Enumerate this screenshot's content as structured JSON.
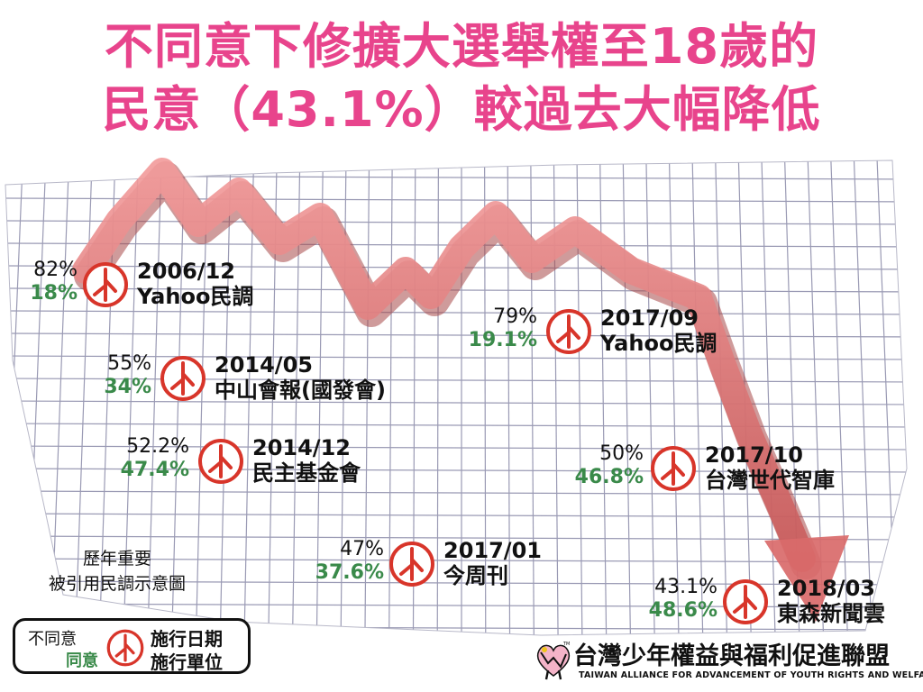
{
  "title": {
    "line1": "不同意下修擴大選舉權至18歲的",
    "line2": "民意（43.1%）較過去大幅降低"
  },
  "colors": {
    "title": "#e8448c",
    "disagree": "#111111",
    "agree": "#3a8a4a",
    "stamp": "#d8352a",
    "arrow": "#e07070"
  },
  "chart_data": {
    "type": "line",
    "x": [
      "2006/12",
      "2014/05",
      "2014/12",
      "2017/01",
      "2017/09",
      "2017/10",
      "2018/03"
    ],
    "series": [
      {
        "name": "不同意",
        "values": [
          82,
          55,
          52.2,
          47,
          79,
          50,
          43.1
        ]
      },
      {
        "name": "同意",
        "values": [
          18,
          34,
          47.4,
          37.6,
          19.1,
          46.8,
          48.6
        ]
      }
    ]
  },
  "polls": [
    {
      "disagree": "82%",
      "agree": "18%",
      "date": "2006/12",
      "source": "Yahoo民調"
    },
    {
      "disagree": "55%",
      "agree": "34%",
      "date": "2014/05",
      "source": "中山會報(國發會)"
    },
    {
      "disagree": "52.2%",
      "agree": "47.4%",
      "date": "2014/12",
      "source": "民主基金會"
    },
    {
      "disagree": "47%",
      "agree": "37.6%",
      "date": "2017/01",
      "source": "今周刊"
    },
    {
      "disagree": "79%",
      "agree": "19.1%",
      "date": "2017/09",
      "source": "Yahoo民調"
    },
    {
      "disagree": "50%",
      "agree": "46.8%",
      "date": "2017/10",
      "source": "台灣世代智庫"
    },
    {
      "disagree": "43.1%",
      "agree": "48.6%",
      "date": "2018/03",
      "source": "東森新聞雲"
    }
  ],
  "legend": {
    "caption_line1": "歷年重要",
    "caption_line2": "被引用民調示意圖",
    "disagree_label": "不同意",
    "agree_label": "同意",
    "date_label": "施行日期",
    "unit_label": "施行單位"
  },
  "organization": {
    "name_zh": "台灣少年權益與福利促進聯盟",
    "name_en": "TAIWAN ALLIANCE FOR ADVANCEMENT OF YOUTH RIGHTS AND WELFARE",
    "tm": "TM"
  }
}
